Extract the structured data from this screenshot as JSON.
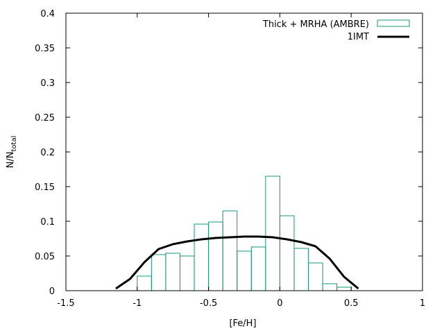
{
  "chart_data": {
    "type": "bar",
    "xlabel": "[Fe/H]",
    "ylabel": "N/N",
    "ylabel_sub": "total",
    "xlim": [
      -1.5,
      1
    ],
    "ylim": [
      0,
      0.4
    ],
    "xticks": [
      -1.5,
      -1,
      -0.5,
      0,
      0.5,
      1
    ],
    "xtick_labels": [
      "-1.5",
      "-1",
      "-0.5",
      "0",
      "0.5",
      "1"
    ],
    "yticks": [
      0,
      0.05,
      0.1,
      0.15,
      0.2,
      0.25,
      0.3,
      0.35,
      0.4
    ],
    "ytick_labels": [
      "0",
      "0.05",
      "0.1",
      "0.15",
      "0.2",
      "0.25",
      "0.3",
      "0.35",
      "0.4"
    ],
    "legend_position": "top-right",
    "series": [
      {
        "name": "Thick + MRHA (AMBRE)",
        "kind": "histogram",
        "color": "#13977a",
        "bin_width": 0.1,
        "bin_left": [
          -1.0,
          -0.9,
          -0.8,
          -0.7,
          -0.6,
          -0.5,
          -0.4,
          -0.3,
          -0.2,
          -0.1,
          0.0,
          0.1,
          0.2,
          0.3,
          0.4
        ],
        "values": [
          0.021,
          0.052,
          0.054,
          0.05,
          0.096,
          0.099,
          0.115,
          0.057,
          0.063,
          0.165,
          0.108,
          0.061,
          0.04,
          0.01,
          0.005
        ]
      },
      {
        "name": "1IMT",
        "kind": "line",
        "color": "#000000",
        "x": [
          -1.15,
          -1.05,
          -0.95,
          -0.85,
          -0.75,
          -0.65,
          -0.55,
          -0.45,
          -0.35,
          -0.25,
          -0.15,
          -0.05,
          0.05,
          0.15,
          0.25,
          0.35,
          0.45,
          0.55
        ],
        "y": [
          0.003,
          0.017,
          0.041,
          0.06,
          0.067,
          0.071,
          0.074,
          0.076,
          0.077,
          0.078,
          0.078,
          0.077,
          0.074,
          0.07,
          0.064,
          0.046,
          0.02,
          0.003
        ]
      }
    ]
  }
}
